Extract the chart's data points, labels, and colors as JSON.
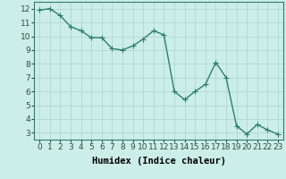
{
  "x": [
    0,
    1,
    2,
    3,
    4,
    5,
    6,
    7,
    8,
    9,
    10,
    11,
    12,
    13,
    14,
    15,
    16,
    17,
    18,
    19,
    20,
    21,
    22,
    23
  ],
  "y": [
    11.9,
    12.0,
    11.5,
    10.7,
    10.4,
    9.9,
    9.9,
    9.1,
    9.0,
    9.3,
    9.8,
    10.4,
    10.1,
    6.0,
    5.4,
    6.0,
    6.5,
    8.1,
    7.0,
    3.5,
    2.9,
    3.6,
    3.2,
    2.9
  ],
  "xlabel": "Humidex (Indice chaleur)",
  "xlim": [
    -0.5,
    23.5
  ],
  "ylim": [
    2.5,
    12.5
  ],
  "yticks": [
    3,
    4,
    5,
    6,
    7,
    8,
    9,
    10,
    11,
    12
  ],
  "xticks": [
    0,
    1,
    2,
    3,
    4,
    5,
    6,
    7,
    8,
    9,
    10,
    11,
    12,
    13,
    14,
    15,
    16,
    17,
    18,
    19,
    20,
    21,
    22,
    23
  ],
  "line_color": "#2e7d6e",
  "marker_color": "#2e7d6e",
  "bg_color": "#cceee8",
  "grid_color": "#b0d8d0",
  "xlabel_fontsize": 7.5,
  "tick_fontsize": 6.5,
  "line_width": 1.0,
  "marker_size": 2.0
}
